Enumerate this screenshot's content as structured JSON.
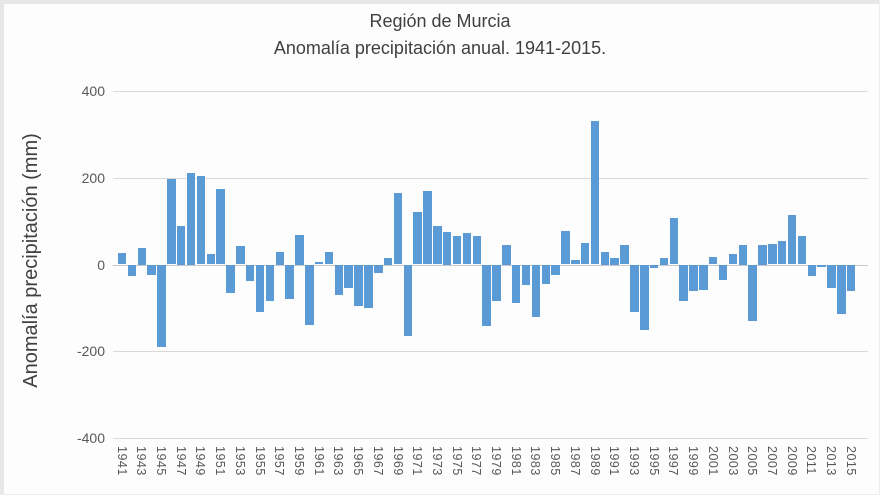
{
  "chart_title": {
    "line1": "Región de Murcia",
    "line2": "Anomalía precipitación anual. 1941-2015."
  },
  "y_axis": {
    "title": "Anomalía precipitación (mm)",
    "tick_labels": [
      "400",
      "200",
      "0",
      "-200",
      "-400"
    ],
    "tick_values": [
      400,
      200,
      0,
      -200,
      -400
    ]
  },
  "x_axis": {
    "tick_years": [
      1941,
      1943,
      1945,
      1947,
      1949,
      1951,
      1953,
      1955,
      1957,
      1959,
      1961,
      1963,
      1965,
      1967,
      1969,
      1971,
      1973,
      1975,
      1977,
      1979,
      1981,
      1983,
      1985,
      1987,
      1989,
      1991,
      1993,
      1995,
      1997,
      1999,
      2001,
      2003,
      2005,
      2007,
      2009,
      2011,
      2013,
      2015
    ]
  },
  "chart_data": {
    "type": "bar",
    "title": "Región de Murcia — Anomalía precipitación anual. 1941-2015.",
    "xlabel": "",
    "ylabel": "Anomalía precipitación (mm)",
    "ylim": [
      -400,
      400
    ],
    "grid": true,
    "legend": false,
    "bar_color": "#5b9bd5",
    "categories": [
      1941,
      1942,
      1943,
      1944,
      1945,
      1946,
      1947,
      1948,
      1949,
      1950,
      1951,
      1952,
      1953,
      1954,
      1955,
      1956,
      1957,
      1958,
      1959,
      1960,
      1961,
      1962,
      1963,
      1964,
      1965,
      1966,
      1967,
      1968,
      1969,
      1970,
      1971,
      1972,
      1973,
      1974,
      1975,
      1976,
      1977,
      1978,
      1979,
      1980,
      1981,
      1982,
      1983,
      1984,
      1985,
      1986,
      1987,
      1988,
      1989,
      1990,
      1991,
      1992,
      1993,
      1994,
      1995,
      1996,
      1997,
      1998,
      1999,
      2000,
      2001,
      2002,
      2003,
      2004,
      2005,
      2006,
      2007,
      2008,
      2009,
      2010,
      2011,
      2012,
      2013,
      2014,
      2015
    ],
    "values": [
      27,
      -27,
      38,
      -23,
      -190,
      198,
      90,
      212,
      205,
      25,
      175,
      -65,
      42,
      -37,
      -110,
      -85,
      30,
      -80,
      68,
      -140,
      5,
      28,
      -70,
      -55,
      -95,
      -100,
      -20,
      15,
      165,
      -165,
      122,
      170,
      88,
      76,
      65,
      72,
      65,
      -142,
      -85,
      46,
      -88,
      -48,
      -120,
      -45,
      -25,
      77,
      10,
      50,
      330,
      30,
      15,
      44,
      -110,
      -150,
      -8,
      15,
      108,
      -85,
      -62,
      -58,
      18,
      -35,
      25,
      46,
      -131,
      45,
      47,
      54,
      115,
      65,
      -27,
      -5,
      -54,
      -115,
      -60
    ]
  }
}
